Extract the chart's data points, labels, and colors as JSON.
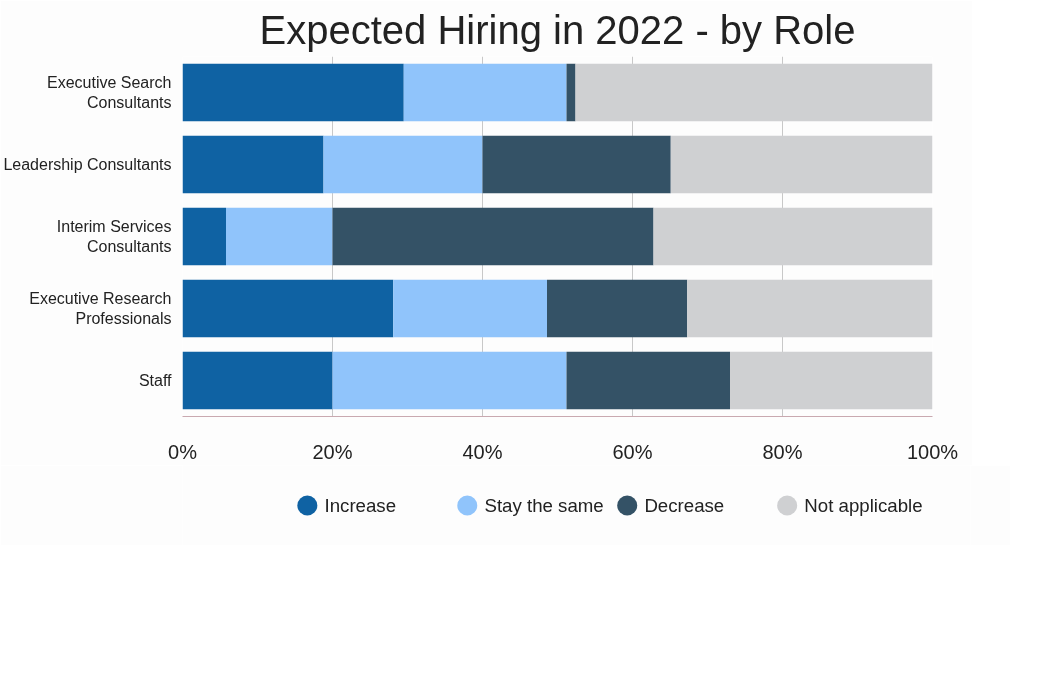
{
  "chart_data": {
    "type": "bar",
    "orientation": "horizontal",
    "stacked": true,
    "title": "Expected Hiring in 2022 - by Role",
    "categories": [
      "Executive Search Consultants",
      "Leadership Consultants",
      "Interim Services Consultants",
      "Executive Research Professionals",
      "Staff"
    ],
    "series": [
      {
        "name": "Increase",
        "color": "#0f62a3",
        "values": [
          29.5,
          18.8,
          5.8,
          28.1,
          20.0
        ]
      },
      {
        "name": "Stay the same",
        "color": "#90c4fb",
        "values": [
          21.7,
          21.2,
          14.2,
          20.5,
          31.2
        ]
      },
      {
        "name": "Decrease",
        "color": "#345266",
        "values": [
          1.2,
          25.1,
          42.8,
          18.7,
          21.8
        ]
      },
      {
        "name": "Not applicable",
        "color": "#cfd0d2",
        "values": [
          47.6,
          34.9,
          37.2,
          32.7,
          27.0
        ]
      }
    ],
    "xlim": [
      0,
      100
    ],
    "xticks": [
      {
        "value": 0,
        "label": "0%"
      },
      {
        "value": 20,
        "label": "20%"
      },
      {
        "value": 40,
        "label": "40%"
      },
      {
        "value": 60,
        "label": "60%"
      },
      {
        "value": 80,
        "label": "80%"
      },
      {
        "value": 100,
        "label": "100%"
      }
    ],
    "grid": "x",
    "legend": "bottom"
  }
}
